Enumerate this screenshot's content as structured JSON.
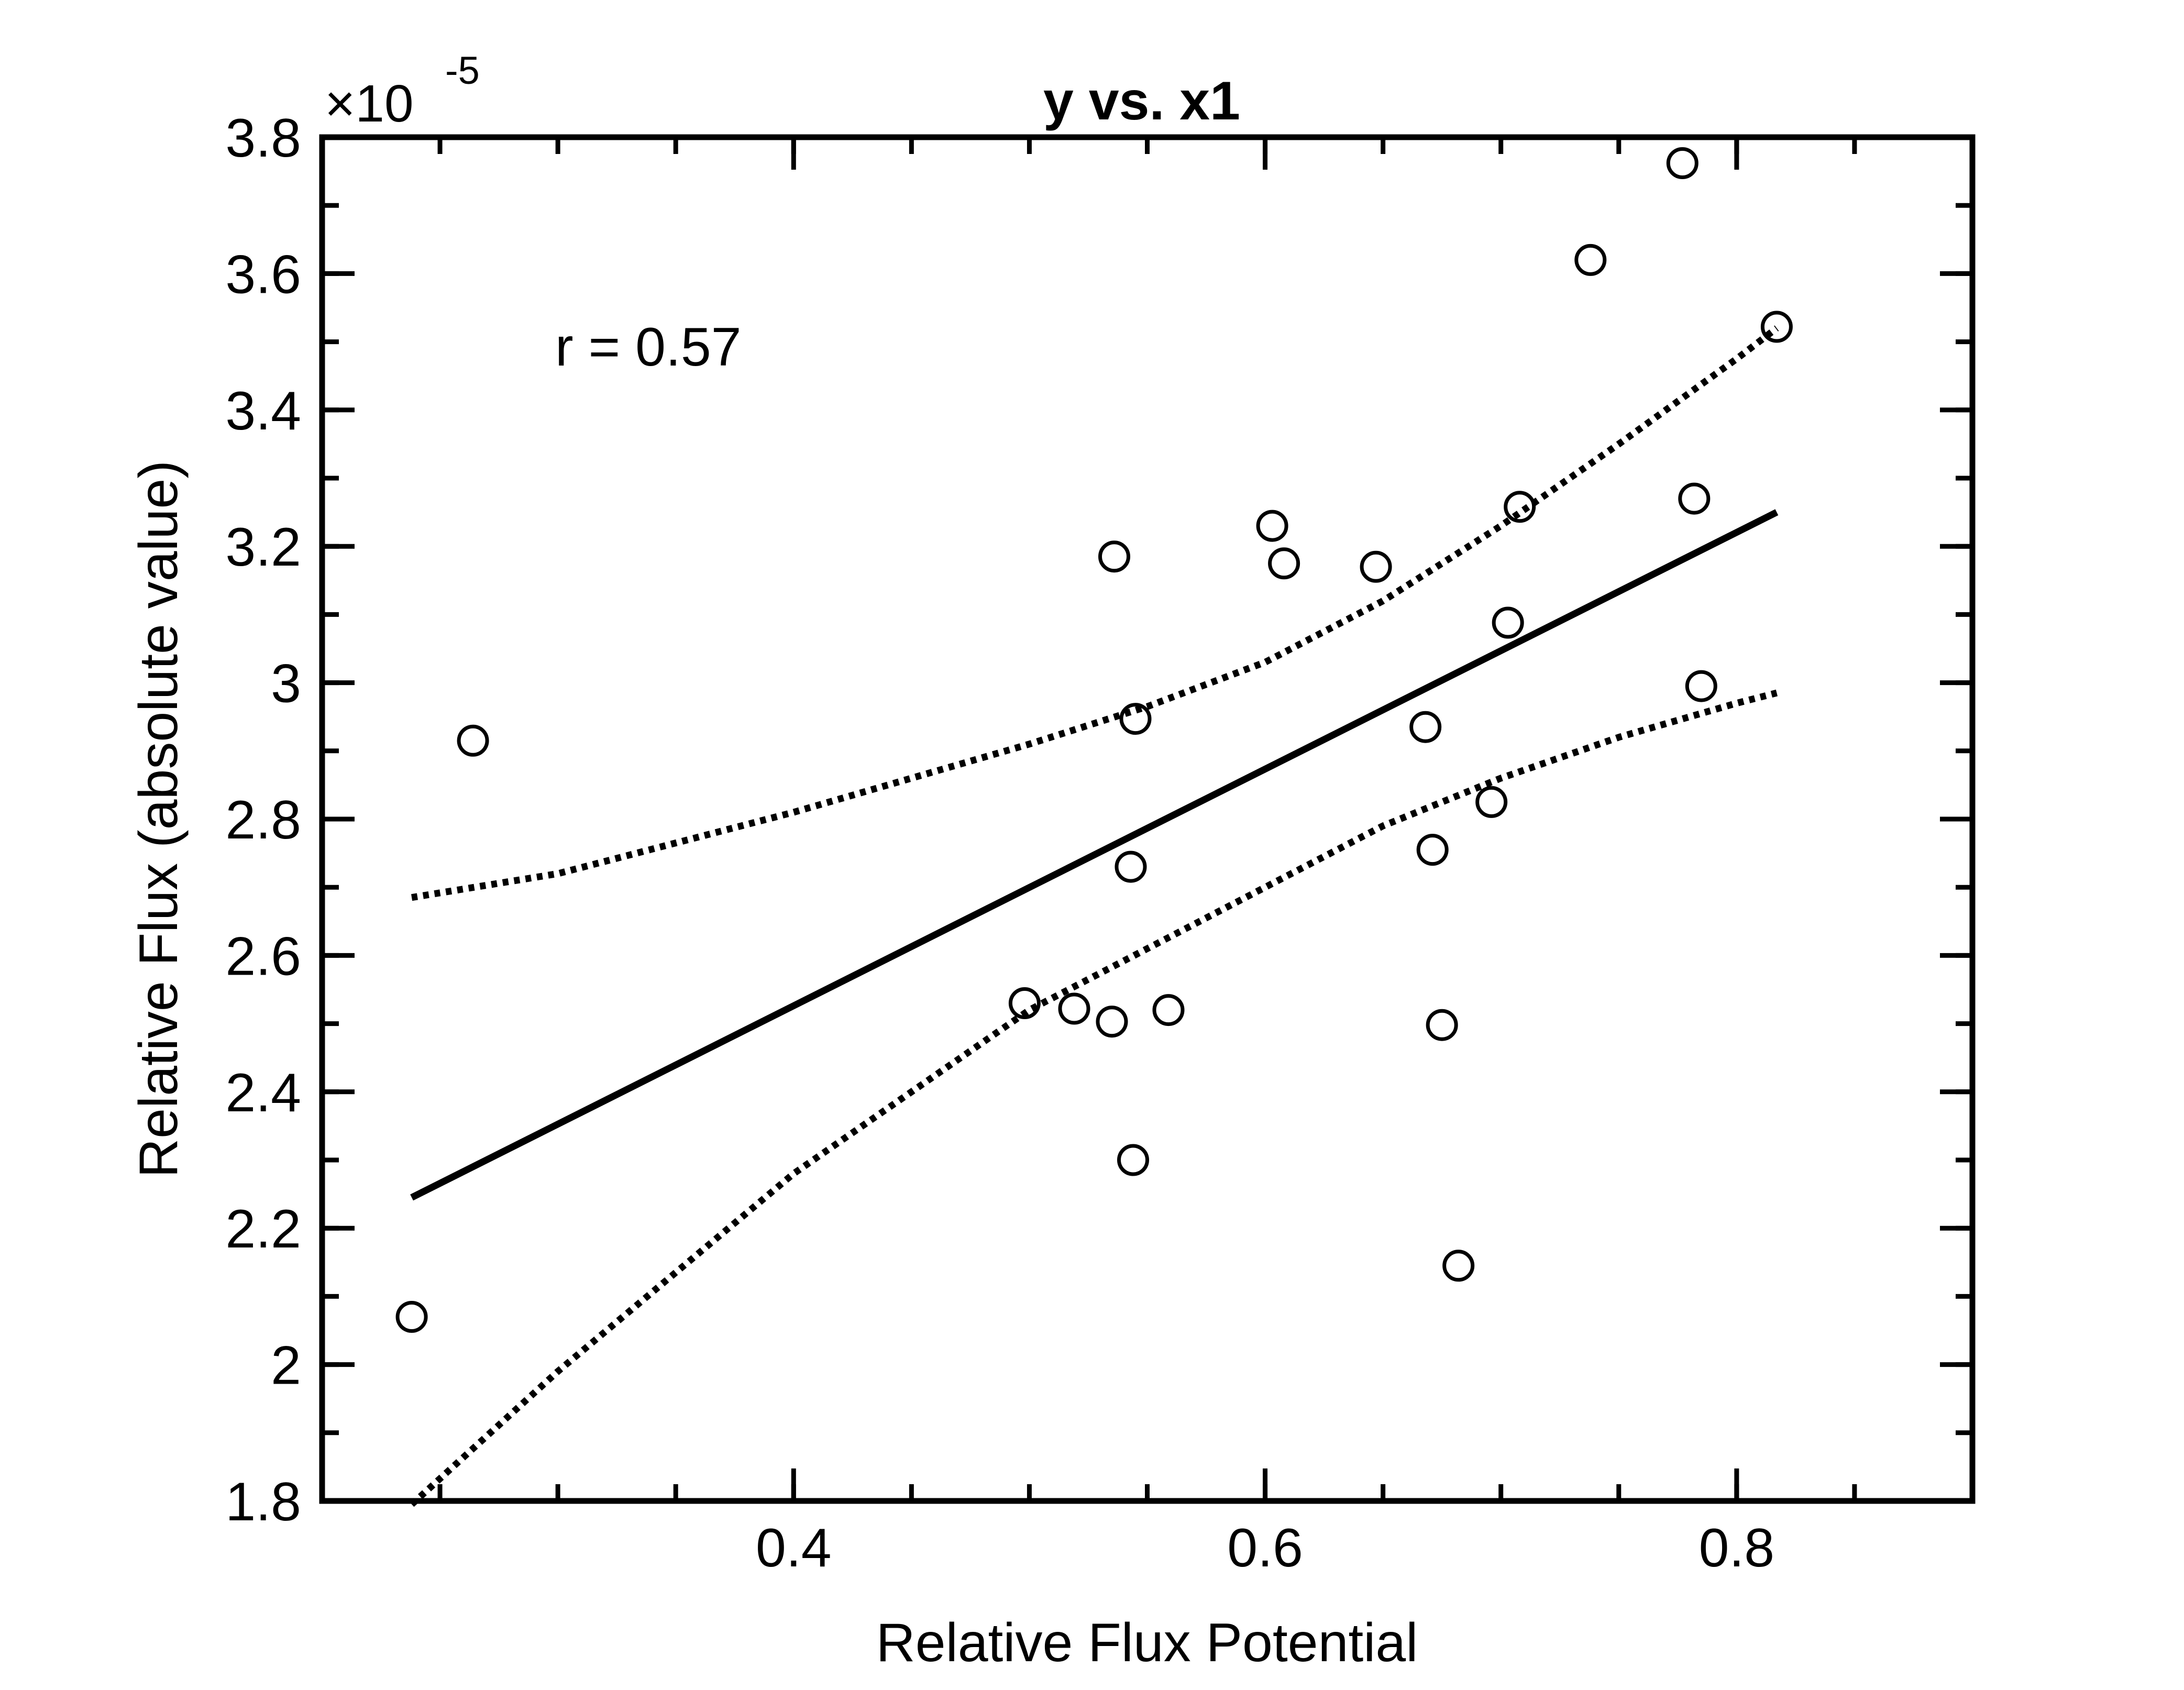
{
  "chart_data": {
    "type": "scatter",
    "title": "y vs. x1",
    "xlabel": "Relative Flux Potential",
    "ylabel": "Relative Flux (absolute value)",
    "y_scale_exponent_label": "×10",
    "y_scale_exponent": "-5",
    "annotation": "r = 0.57",
    "xlim": [
      0.2,
      0.9
    ],
    "ylim": [
      1.8,
      3.8
    ],
    "x_ticks": [
      {
        "value": 0.4,
        "label": "0.4"
      },
      {
        "value": 0.6,
        "label": "0.6"
      },
      {
        "value": 0.8,
        "label": "0.8"
      }
    ],
    "y_ticks": [
      {
        "value": 1.8,
        "label": "1.8"
      },
      {
        "value": 2.0,
        "label": "2"
      },
      {
        "value": 2.2,
        "label": "2.2"
      },
      {
        "value": 2.4,
        "label": "2.4"
      },
      {
        "value": 2.6,
        "label": "2.6"
      },
      {
        "value": 2.8,
        "label": "2.8"
      },
      {
        "value": 3.0,
        "label": "3"
      },
      {
        "value": 3.2,
        "label": "3.2"
      },
      {
        "value": 3.4,
        "label": "3.4"
      },
      {
        "value": 3.6,
        "label": "3.6"
      },
      {
        "value": 3.8,
        "label": "3.8"
      }
    ],
    "x_minor_step": 0.05,
    "y_minor_step": 0.1,
    "grid": false,
    "points": [
      {
        "x": 0.238,
        "y": 2.07
      },
      {
        "x": 0.264,
        "y": 2.915
      },
      {
        "x": 0.498,
        "y": 2.53
      },
      {
        "x": 0.519,
        "y": 2.522
      },
      {
        "x": 0.535,
        "y": 2.503
      },
      {
        "x": 0.536,
        "y": 3.185
      },
      {
        "x": 0.543,
        "y": 2.73
      },
      {
        "x": 0.544,
        "y": 2.3
      },
      {
        "x": 0.545,
        "y": 2.947
      },
      {
        "x": 0.559,
        "y": 2.52
      },
      {
        "x": 0.603,
        "y": 3.23
      },
      {
        "x": 0.608,
        "y": 3.175
      },
      {
        "x": 0.647,
        "y": 3.17
      },
      {
        "x": 0.668,
        "y": 2.935
      },
      {
        "x": 0.671,
        "y": 2.755
      },
      {
        "x": 0.675,
        "y": 2.498
      },
      {
        "x": 0.682,
        "y": 2.145
      },
      {
        "x": 0.696,
        "y": 2.825
      },
      {
        "x": 0.703,
        "y": 3.088
      },
      {
        "x": 0.708,
        "y": 3.258
      },
      {
        "x": 0.738,
        "y": 3.62
      },
      {
        "x": 0.777,
        "y": 3.762
      },
      {
        "x": 0.782,
        "y": 3.27
      },
      {
        "x": 0.785,
        "y": 2.995
      },
      {
        "x": 0.817,
        "y": 3.522
      }
    ],
    "fit_line": [
      {
        "x": 0.238,
        "y": 2.245
      },
      {
        "x": 0.817,
        "y": 3.25
      }
    ],
    "upper_bound": [
      {
        "x": 0.238,
        "y": 2.685
      },
      {
        "x": 0.3,
        "y": 2.72
      },
      {
        "x": 0.4,
        "y": 2.81
      },
      {
        "x": 0.5,
        "y": 2.91
      },
      {
        "x": 0.55,
        "y": 2.965
      },
      {
        "x": 0.6,
        "y": 3.03
      },
      {
        "x": 0.65,
        "y": 3.12
      },
      {
        "x": 0.7,
        "y": 3.23
      },
      {
        "x": 0.75,
        "y": 3.35
      },
      {
        "x": 0.8,
        "y": 3.475
      },
      {
        "x": 0.817,
        "y": 3.52
      }
    ],
    "lower_bound": [
      {
        "x": 0.238,
        "y": 1.795
      },
      {
        "x": 0.3,
        "y": 1.99
      },
      {
        "x": 0.4,
        "y": 2.28
      },
      {
        "x": 0.5,
        "y": 2.52
      },
      {
        "x": 0.55,
        "y": 2.61
      },
      {
        "x": 0.6,
        "y": 2.7
      },
      {
        "x": 0.65,
        "y": 2.79
      },
      {
        "x": 0.7,
        "y": 2.86
      },
      {
        "x": 0.75,
        "y": 2.92
      },
      {
        "x": 0.8,
        "y": 2.97
      },
      {
        "x": 0.817,
        "y": 2.985
      }
    ],
    "colors": {
      "axes": "#000000",
      "markers": "#000000",
      "background": "#ffffff"
    }
  }
}
